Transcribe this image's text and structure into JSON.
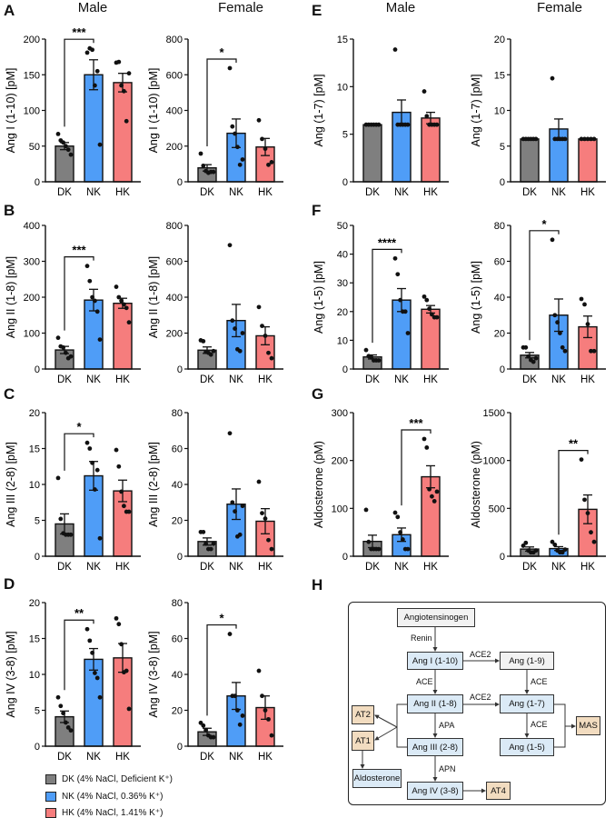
{
  "panel_letters": [
    "A",
    "B",
    "C",
    "D",
    "E",
    "F",
    "G",
    "H"
  ],
  "column_titles": {
    "left_male": "Male",
    "left_female": "Female",
    "right_male": "Male",
    "right_female": "Female"
  },
  "colors": {
    "DK": "#7f7f7f",
    "NK": "#4f9df7",
    "HK": "#f67d7d",
    "receptor": "#f2dcc0",
    "peptide": "#dbeaf6",
    "precursor": "#f2f2f2"
  },
  "legend": [
    {
      "key": "DK",
      "label": "DK (4% NaCl, Deficient K⁺)"
    },
    {
      "key": "NK",
      "label": "NK (4% NaCl, 0.36% K⁺)"
    },
    {
      "key": "HK",
      "label": "HK (4% NaCl, 1.41% K⁺)"
    }
  ],
  "chart_data": [
    {
      "panel": "A",
      "sex": "Male",
      "type": "bar",
      "ylabel": "Ang I (1-10) [pM]",
      "ylim": [
        0,
        200
      ],
      "yticks": [
        0,
        50,
        100,
        150,
        200
      ],
      "categories": [
        "DK",
        "NK",
        "HK"
      ],
      "groups": [
        {
          "name": "DK",
          "mean": 50,
          "sem": 5,
          "points": [
            67,
            58,
            55,
            50,
            45,
            38
          ]
        },
        {
          "name": "NK",
          "mean": 150,
          "sem": 21,
          "points": [
            181,
            187,
            185,
            135,
            155,
            52
          ]
        },
        {
          "name": "HK",
          "mean": 139,
          "sem": 13,
          "points": [
            167,
            168,
            135,
            127,
            85,
            152
          ]
        }
      ],
      "significance": {
        "pair": [
          "DK",
          "NK"
        ],
        "label": "***"
      }
    },
    {
      "panel": "A",
      "sex": "Female",
      "type": "bar",
      "ylabel": "Ang I (1-10) [pM]",
      "ylim": [
        0,
        800
      ],
      "yticks": [
        0,
        200,
        400,
        600,
        800
      ],
      "categories": [
        "DK",
        "NK",
        "HK"
      ],
      "groups": [
        {
          "name": "DK",
          "mean": 78,
          "sem": 18,
          "points": [
            158,
            90,
            60,
            50,
            55,
            55
          ]
        },
        {
          "name": "NK",
          "mean": 272,
          "sem": 80,
          "points": [
            637,
            310,
            270,
            195,
            95,
            125
          ]
        },
        {
          "name": "HK",
          "mean": 195,
          "sem": 48,
          "points": [
            345,
            240,
            185,
            95,
            110
          ]
        }
      ],
      "significance": {
        "pair": [
          "DK",
          "NK"
        ],
        "label": "*"
      }
    },
    {
      "panel": "B",
      "sex": "Male",
      "type": "bar",
      "ylabel": "Ang II (1-8) [pM]",
      "ylim": [
        0,
        400
      ],
      "yticks": [
        0,
        100,
        200,
        300,
        400
      ],
      "categories": [
        "DK",
        "NK",
        "HK"
      ],
      "groups": [
        {
          "name": "DK",
          "mean": 53,
          "sem": 10,
          "points": [
            87,
            63,
            60,
            45,
            30,
            35
          ]
        },
        {
          "name": "NK",
          "mean": 192,
          "sem": 30,
          "points": [
            287,
            245,
            200,
            190,
            160,
            82
          ]
        },
        {
          "name": "HK",
          "mean": 183,
          "sem": 14,
          "points": [
            229,
            200,
            190,
            180,
            170,
            130
          ]
        }
      ],
      "significance": {
        "pair": [
          "DK",
          "NK"
        ],
        "label": "***"
      }
    },
    {
      "panel": "B",
      "sex": "Female",
      "type": "bar",
      "ylabel": "Ang II (1-8) [pM]",
      "ylim": [
        0,
        800
      ],
      "yticks": [
        0,
        200,
        400,
        600,
        800
      ],
      "categories": [
        "DK",
        "NK",
        "HK"
      ],
      "groups": [
        {
          "name": "DK",
          "mean": 105,
          "sem": 18,
          "points": [
            160,
            155,
            95,
            90,
            80,
            100
          ]
        },
        {
          "name": "NK",
          "mean": 270,
          "sem": 90,
          "points": [
            690,
            270,
            225,
            110,
            100,
            200
          ]
        },
        {
          "name": "HK",
          "mean": 185,
          "sem": 50,
          "points": [
            345,
            240,
            185,
            90,
            60
          ]
        }
      ],
      "significance": null
    },
    {
      "panel": "C",
      "sex": "Male",
      "type": "bar",
      "ylabel": "Ang III (2-8) [pM]",
      "ylim": [
        0,
        20
      ],
      "yticks": [
        0,
        5,
        10,
        15,
        20
      ],
      "categories": [
        "DK",
        "NK",
        "HK"
      ],
      "groups": [
        {
          "name": "DK",
          "mean": 4.5,
          "sem": 1.4,
          "points": [
            10.9,
            5.2,
            3.2,
            3,
            3,
            3
          ]
        },
        {
          "name": "NK",
          "mean": 11.2,
          "sem": 2,
          "points": [
            15.8,
            15,
            13,
            9.3,
            12,
            2.5
          ]
        },
        {
          "name": "HK",
          "mean": 9.1,
          "sem": 1.5,
          "points": [
            14.8,
            12.5,
            9,
            7,
            6.2,
            6.2
          ]
        }
      ],
      "significance": {
        "pair": [
          "DK",
          "NK"
        ],
        "label": "*"
      }
    },
    {
      "panel": "C",
      "sex": "Female",
      "type": "bar",
      "ylabel": "Ang III (2-8) [pM]",
      "ylim": [
        0,
        80
      ],
      "yticks": [
        0,
        20,
        40,
        60,
        80
      ],
      "categories": [
        "DK",
        "NK",
        "HK"
      ],
      "groups": [
        {
          "name": "DK",
          "mean": 8.2,
          "sem": 2,
          "points": [
            13.5,
            13.5,
            7,
            4,
            4,
            7
          ]
        },
        {
          "name": "NK",
          "mean": 29,
          "sem": 8.5,
          "points": [
            68.5,
            30,
            25,
            11,
            12,
            28
          ]
        },
        {
          "name": "HK",
          "mean": 19.5,
          "sem": 7,
          "points": [
            41.5,
            24,
            21,
            9,
            4
          ]
        }
      ],
      "significance": null
    },
    {
      "panel": "D",
      "sex": "Male",
      "type": "bar",
      "ylabel": "Ang IV (3-8) [pM]",
      "ylim": [
        0,
        20
      ],
      "yticks": [
        0,
        5,
        10,
        15,
        20
      ],
      "categories": [
        "DK",
        "NK",
        "HK"
      ],
      "groups": [
        {
          "name": "DK",
          "mean": 4.1,
          "sem": 0.8,
          "points": [
            6.8,
            5.6,
            4.6,
            3.3,
            2.6,
            2.2
          ]
        },
        {
          "name": "NK",
          "mean": 12.1,
          "sem": 1.5,
          "points": [
            16.3,
            14.7,
            13,
            10.2,
            9.5,
            6.8
          ]
        },
        {
          "name": "HK",
          "mean": 12.3,
          "sem": 2,
          "points": [
            17.8,
            17,
            14.2,
            10.3,
            10.5,
            5.2
          ]
        }
      ],
      "significance": {
        "pair": [
          "DK",
          "NK"
        ],
        "label": "**"
      }
    },
    {
      "panel": "D",
      "sex": "Female",
      "type": "bar",
      "ylabel": "Ang IV (3-8) [pM]",
      "ylim": [
        0,
        80
      ],
      "yticks": [
        0,
        20,
        40,
        60,
        80
      ],
      "categories": [
        "DK",
        "NK",
        "HK"
      ],
      "groups": [
        {
          "name": "DK",
          "mean": 8,
          "sem": 2,
          "points": [
            13,
            11.5,
            9,
            6,
            5,
            5
          ]
        },
        {
          "name": "NK",
          "mean": 28,
          "sem": 7.5,
          "points": [
            62.5,
            28,
            28,
            20,
            12,
            17
          ]
        },
        {
          "name": "HK",
          "mean": 21.5,
          "sem": 6.5,
          "points": [
            42,
            28,
            20,
            15,
            6
          ]
        }
      ],
      "significance": {
        "pair": [
          "DK",
          "NK"
        ],
        "label": "*"
      }
    },
    {
      "panel": "E",
      "sex": "Male",
      "type": "bar",
      "ylabel": "Ang (1-7) [pM]",
      "ylim": [
        0,
        15
      ],
      "yticks": [
        0,
        5,
        10,
        15
      ],
      "categories": [
        "DK",
        "NK",
        "HK"
      ],
      "groups": [
        {
          "name": "DK",
          "mean": 6,
          "sem": 0,
          "points": [
            6,
            6,
            6,
            6,
            6,
            6
          ]
        },
        {
          "name": "NK",
          "mean": 7.3,
          "sem": 1.3,
          "points": [
            13.9,
            6,
            6,
            6,
            6,
            6
          ]
        },
        {
          "name": "HK",
          "mean": 6.7,
          "sem": 0.6,
          "points": [
            9.5,
            6.9,
            6,
            6,
            6,
            6
          ]
        }
      ],
      "significance": null
    },
    {
      "panel": "E",
      "sex": "Female",
      "type": "bar",
      "ylabel": "Ang (1-7) [pM]",
      "ylim": [
        0,
        20
      ],
      "yticks": [
        0,
        5,
        10,
        15,
        20
      ],
      "categories": [
        "DK",
        "NK",
        "HK"
      ],
      "groups": [
        {
          "name": "DK",
          "mean": 6,
          "sem": 0,
          "points": [
            6,
            6,
            6,
            6,
            6,
            6
          ]
        },
        {
          "name": "NK",
          "mean": 7.4,
          "sem": 1.4,
          "points": [
            14.5,
            6,
            6,
            6,
            6,
            6
          ]
        },
        {
          "name": "HK",
          "mean": 6,
          "sem": 0,
          "points": [
            6,
            6,
            6,
            6,
            6
          ]
        }
      ],
      "significance": null
    },
    {
      "panel": "F",
      "sex": "Male",
      "type": "bar",
      "ylabel": "Ang (1-5) [pM]",
      "ylim": [
        0,
        50
      ],
      "yticks": [
        0,
        10,
        20,
        30,
        40,
        50
      ],
      "categories": [
        "DK",
        "NK",
        "HK"
      ],
      "groups": [
        {
          "name": "DK",
          "mean": 4.2,
          "sem": 0.7,
          "points": [
            6.6,
            4.5,
            4,
            3,
            3,
            3
          ]
        },
        {
          "name": "NK",
          "mean": 24,
          "sem": 4,
          "points": [
            38.5,
            33,
            24,
            20,
            20,
            12.5
          ]
        },
        {
          "name": "HK",
          "mean": 20.8,
          "sem": 1.3,
          "points": [
            25.2,
            24,
            21,
            19,
            18,
            18
          ]
        }
      ],
      "significance": {
        "pair": [
          "DK",
          "NK"
        ],
        "label": "****"
      }
    },
    {
      "panel": "F",
      "sex": "Female",
      "type": "bar",
      "ylabel": "Ang (1-5) [pM]",
      "ylim": [
        0,
        80
      ],
      "yticks": [
        0,
        20,
        40,
        60,
        80
      ],
      "categories": [
        "DK",
        "NK",
        "HK"
      ],
      "groups": [
        {
          "name": "DK",
          "mean": 7.7,
          "sem": 1.5,
          "points": [
            12,
            12,
            7,
            5,
            4,
            6
          ]
        },
        {
          "name": "NK",
          "mean": 30,
          "sem": 9,
          "points": [
            72,
            30,
            26,
            20,
            12,
            10
          ]
        },
        {
          "name": "HK",
          "mean": 23.5,
          "sem": 6,
          "points": [
            39,
            36,
            25,
            10,
            10
          ]
        }
      ],
      "significance": {
        "pair": [
          "DK",
          "NK"
        ],
        "label": "*"
      }
    },
    {
      "panel": "G",
      "sex": "Male",
      "type": "bar",
      "ylabel": "Aldosterone (pM)",
      "ylim": [
        0,
        300
      ],
      "yticks": [
        0,
        100,
        200,
        300
      ],
      "categories": [
        "DK",
        "NK",
        "HK"
      ],
      "groups": [
        {
          "name": "DK",
          "mean": 31,
          "sem": 13,
          "points": [
            97,
            30,
            15,
            15,
            15,
            15
          ]
        },
        {
          "name": "NK",
          "mean": 45,
          "sem": 14,
          "points": [
            91,
            82,
            50,
            35,
            15,
            15
          ]
        },
        {
          "name": "HK",
          "mean": 166,
          "sem": 23,
          "points": [
            245,
            227,
            140,
            125,
            115,
            135
          ]
        }
      ],
      "significance": {
        "pair": [
          "NK",
          "HK"
        ],
        "label": "***"
      }
    },
    {
      "panel": "G",
      "sex": "Female",
      "type": "bar",
      "ylabel": "Aldosterone (pM)",
      "ylim": [
        0,
        1500
      ],
      "yticks": [
        0,
        500,
        1000,
        1500
      ],
      "categories": [
        "DK",
        "NK",
        "HK"
      ],
      "groups": [
        {
          "name": "DK",
          "mean": 75,
          "sem": 22,
          "points": [
            110,
            140,
            60,
            40,
            40,
            60
          ]
        },
        {
          "name": "NK",
          "mean": 80,
          "sem": 20,
          "points": [
            150,
            120,
            60,
            40,
            40,
            70
          ]
        },
        {
          "name": "HK",
          "mean": 490,
          "sem": 150,
          "points": [
            1010,
            590,
            450,
            250,
            150
          ]
        }
      ],
      "significance": {
        "pair": [
          "NK",
          "HK"
        ],
        "label": "**"
      }
    }
  ],
  "diagram": {
    "nodes": {
      "angiotensinogen": "Angiotensinogen",
      "ang1": "Ang I (1-10)",
      "ang19": "Ang (1-9)",
      "ang2": "Ang II (1-8)",
      "ang17": "Ang (1-7)",
      "ang3": "Ang III (2-8)",
      "ang15": "Ang (1-5)",
      "ang4": "Ang IV (3-8)",
      "at1": "AT1",
      "at2": "AT2",
      "at4": "AT4",
      "mas": "MAS",
      "aldosterone": "Aldosterone"
    },
    "enzymes": {
      "renin": "Renin",
      "ace2_top": "ACE2",
      "ace_left": "ACE",
      "ace_right": "ACE",
      "ace2_mid": "ACE2",
      "apa": "APA",
      "ace_right2": "ACE",
      "apn": "APN"
    }
  }
}
